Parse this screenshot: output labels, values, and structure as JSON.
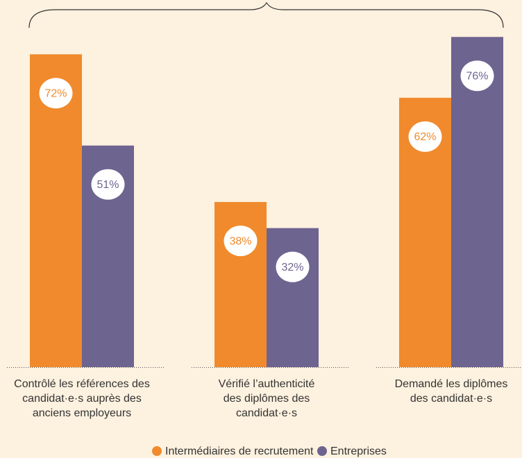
{
  "chart_data": {
    "type": "bar",
    "categories": [
      "Contrôlé les références des\ncandidat·e·s auprès des\nanciens employeurs",
      "Vérifié l’authenticité\ndes diplômes des\ncandidat·e·s",
      "Demandé les diplômes\ndes candidat·e·s"
    ],
    "series": [
      {
        "name": "Intermédiaires de recrutement",
        "color": "#f08a2c",
        "values": [
          72,
          38,
          62
        ],
        "value_labels": [
          "72%",
          "38%",
          "62%"
        ]
      },
      {
        "name": "Entreprises",
        "color": "#6e6490",
        "values": [
          51,
          32,
          76
        ],
        "value_labels": [
          "51%",
          "32%",
          "76%"
        ]
      }
    ]
  }
}
